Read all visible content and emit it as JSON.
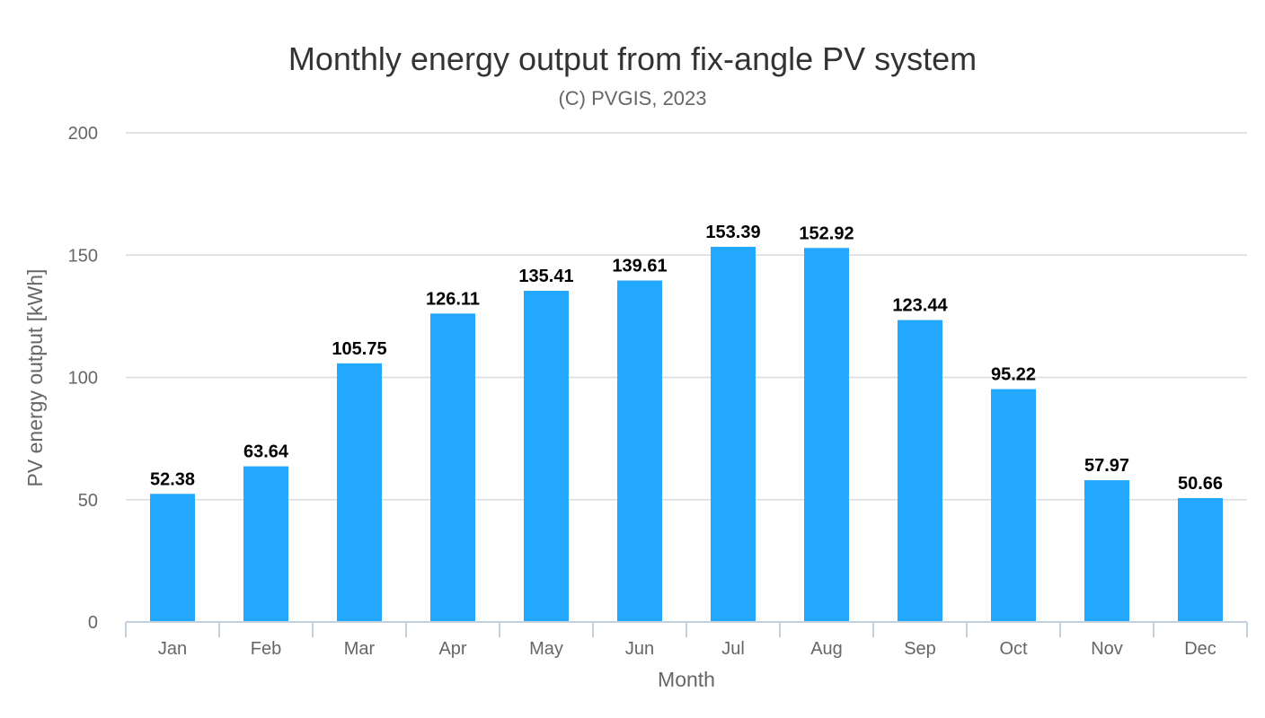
{
  "chart_data": {
    "type": "bar",
    "title": "Monthly energy output from fix-angle PV system",
    "subtitle": "(C) PVGIS, 2023",
    "xlabel": "Month",
    "ylabel": "PV energy output [kWh]",
    "categories": [
      "Jan",
      "Feb",
      "Mar",
      "Apr",
      "May",
      "Jun",
      "Jul",
      "Aug",
      "Sep",
      "Oct",
      "Nov",
      "Dec"
    ],
    "values": [
      52.38,
      63.64,
      105.75,
      126.11,
      135.41,
      139.61,
      153.39,
      152.92,
      123.44,
      95.22,
      57.97,
      50.66
    ],
    "value_labels": [
      "52.38",
      "63.64",
      "105.75",
      "126.11",
      "135.41",
      "139.61",
      "153.39",
      "152.92",
      "123.44",
      "95.22",
      "57.97",
      "50.66"
    ],
    "ylim": [
      0,
      200
    ],
    "yticks": [
      0,
      50,
      100,
      150,
      200
    ],
    "grid": true,
    "legend": "none",
    "bar_color": "#22a8ff"
  }
}
